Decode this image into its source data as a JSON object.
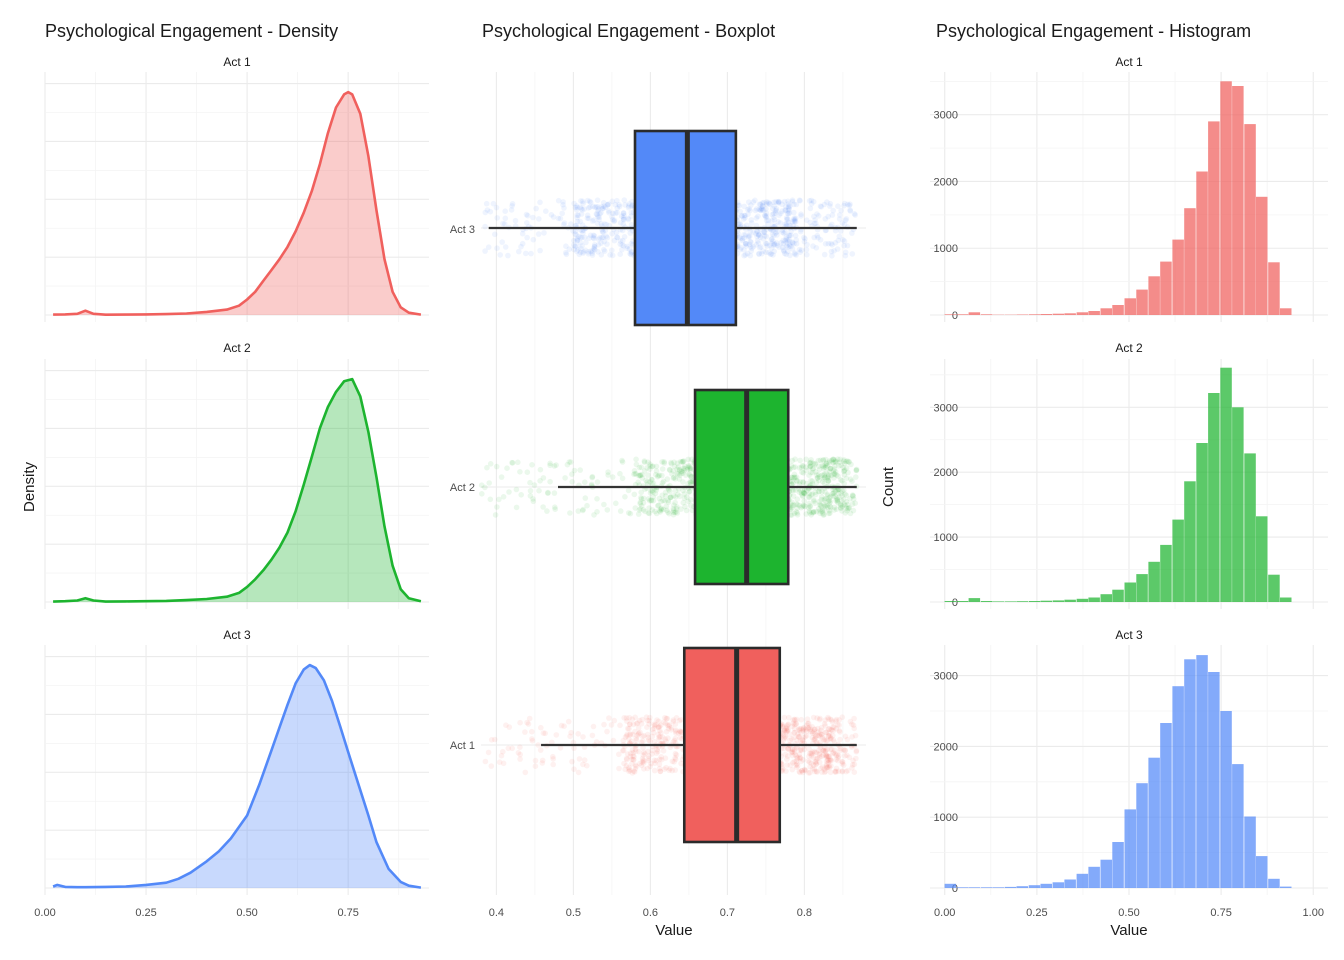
{
  "chart_data": [
    {
      "type": "density",
      "title": "Psychological Engagement - Density",
      "xlabel": "",
      "ylabel": "Density",
      "xlim": [
        0.0,
        0.95
      ],
      "xticks": [
        "0.00",
        "0.25",
        "0.50",
        "0.75"
      ],
      "show_y_ticks": false,
      "grid": true,
      "facets": [
        {
          "label": "Act 1",
          "color": "#F0605D",
          "x": [
            0.02,
            0.05,
            0.08,
            0.1,
            0.12,
            0.15,
            0.2,
            0.25,
            0.3,
            0.35,
            0.4,
            0.45,
            0.48,
            0.5,
            0.52,
            0.54,
            0.56,
            0.58,
            0.6,
            0.62,
            0.64,
            0.66,
            0.68,
            0.7,
            0.72,
            0.74,
            0.75,
            0.76,
            0.78,
            0.8,
            0.82,
            0.84,
            0.86,
            0.88,
            0.9,
            0.93
          ],
          "y": [
            0.005,
            0.008,
            0.015,
            0.055,
            0.015,
            0.004,
            0.005,
            0.008,
            0.012,
            0.02,
            0.04,
            0.07,
            0.12,
            0.2,
            0.3,
            0.44,
            0.58,
            0.72,
            0.88,
            1.08,
            1.32,
            1.6,
            1.95,
            2.35,
            2.68,
            2.85,
            2.88,
            2.85,
            2.6,
            2.05,
            1.35,
            0.72,
            0.3,
            0.1,
            0.03,
            0.005
          ]
        },
        {
          "label": "Act 2",
          "color": "#1DB42F",
          "x": [
            0.02,
            0.05,
            0.08,
            0.1,
            0.12,
            0.15,
            0.2,
            0.25,
            0.3,
            0.35,
            0.4,
            0.45,
            0.48,
            0.5,
            0.52,
            0.54,
            0.56,
            0.58,
            0.6,
            0.62,
            0.64,
            0.66,
            0.68,
            0.7,
            0.72,
            0.74,
            0.76,
            0.78,
            0.8,
            0.82,
            0.84,
            0.86,
            0.88,
            0.9,
            0.93
          ],
          "y": [
            0.005,
            0.01,
            0.02,
            0.05,
            0.02,
            0.005,
            0.008,
            0.01,
            0.015,
            0.025,
            0.04,
            0.07,
            0.12,
            0.2,
            0.3,
            0.42,
            0.56,
            0.72,
            0.92,
            1.2,
            1.55,
            1.92,
            2.3,
            2.58,
            2.78,
            2.92,
            2.95,
            2.72,
            2.25,
            1.65,
            1.0,
            0.48,
            0.17,
            0.05,
            0.01
          ]
        },
        {
          "label": "Act 3",
          "color": "#5389F8",
          "x": [
            0.02,
            0.03,
            0.05,
            0.08,
            0.1,
            0.15,
            0.2,
            0.25,
            0.3,
            0.33,
            0.36,
            0.4,
            0.43,
            0.46,
            0.5,
            0.53,
            0.56,
            0.58,
            0.6,
            0.62,
            0.64,
            0.655,
            0.67,
            0.69,
            0.71,
            0.73,
            0.75,
            0.77,
            0.8,
            0.82,
            0.85,
            0.88,
            0.9,
            0.93
          ],
          "y": [
            0.02,
            0.04,
            0.015,
            0.01,
            0.01,
            0.015,
            0.02,
            0.04,
            0.07,
            0.12,
            0.2,
            0.35,
            0.48,
            0.65,
            0.95,
            1.35,
            1.8,
            2.1,
            2.4,
            2.68,
            2.86,
            2.92,
            2.88,
            2.72,
            2.45,
            2.12,
            1.78,
            1.45,
            0.95,
            0.6,
            0.25,
            0.08,
            0.03,
            0.005
          ]
        }
      ]
    },
    {
      "type": "boxplot",
      "title": "Psychological Engagement - Boxplot",
      "xlabel": "Value",
      "ylabel": "",
      "xlim": [
        0.38,
        0.88
      ],
      "xticks": [
        0.4,
        0.5,
        0.6,
        0.7,
        0.8
      ],
      "categories": [
        "Act 3",
        "Act 2",
        "Act 1"
      ],
      "boxes": [
        {
          "label": "Act 3",
          "color": "#5389F8",
          "whisker_low": 0.39,
          "q1": 0.58,
          "median": 0.648,
          "q3": 0.711,
          "whisker_high": 0.868,
          "points_from": 0.385
        },
        {
          "label": "Act 2",
          "color": "#1DB42F",
          "whisker_low": 0.48,
          "q1": 0.658,
          "median": 0.725,
          "q3": 0.779,
          "whisker_high": 0.868,
          "points_from": 0.38
        },
        {
          "label": "Act 1",
          "color": "#F0605D",
          "whisker_low": 0.458,
          "q1": 0.644,
          "median": 0.712,
          "q3": 0.768,
          "whisker_high": 0.868,
          "points_from": 0.38
        }
      ]
    },
    {
      "type": "histogram",
      "title": "Psychological Engagement - Histogram",
      "xlabel": "Value",
      "ylabel": "Count",
      "xlim": [
        0.0,
        1.0
      ],
      "xticks": [
        "0.00",
        "0.25",
        "0.50",
        "0.75",
        "1.00"
      ],
      "bin_width": 0.0325,
      "grid": true,
      "facets": [
        {
          "label": "Act 1",
          "color": "#F0605D",
          "ymax": 3500,
          "yticks": [
            0,
            1000,
            2000,
            3000
          ],
          "bins": [
            0.016,
            0.049,
            0.081,
            0.114,
            0.146,
            0.179,
            0.211,
            0.244,
            0.276,
            0.309,
            0.341,
            0.374,
            0.406,
            0.439,
            0.471,
            0.504,
            0.536,
            0.569,
            0.601,
            0.634,
            0.666,
            0.699,
            0.731,
            0.764,
            0.796,
            0.829,
            0.861,
            0.894,
            0.926
          ],
          "counts": [
            10,
            10,
            40,
            10,
            5,
            5,
            8,
            10,
            15,
            20,
            25,
            40,
            60,
            100,
            150,
            250,
            380,
            580,
            800,
            1130,
            1600,
            2150,
            2900,
            3500,
            3430,
            2860,
            1770,
            790,
            100
          ]
        },
        {
          "label": "Act 2",
          "color": "#1DB42F",
          "ymax": 3600,
          "yticks": [
            0,
            1000,
            2000,
            3000
          ],
          "bins": [
            0.016,
            0.049,
            0.081,
            0.114,
            0.146,
            0.179,
            0.211,
            0.244,
            0.276,
            0.309,
            0.341,
            0.374,
            0.406,
            0.439,
            0.471,
            0.504,
            0.536,
            0.569,
            0.601,
            0.634,
            0.666,
            0.699,
            0.731,
            0.764,
            0.796,
            0.829,
            0.861,
            0.894,
            0.926
          ],
          "counts": [
            15,
            15,
            60,
            15,
            10,
            10,
            12,
            15,
            20,
            25,
            35,
            50,
            70,
            120,
            190,
            300,
            430,
            620,
            880,
            1270,
            1860,
            2450,
            3220,
            3610,
            3000,
            2290,
            1320,
            420,
            70
          ]
        },
        {
          "label": "Act 3",
          "color": "#5389F8",
          "ymax": 3300,
          "yticks": [
            0,
            1000,
            2000,
            3000
          ],
          "bins": [
            0.016,
            0.049,
            0.081,
            0.114,
            0.146,
            0.179,
            0.211,
            0.244,
            0.276,
            0.309,
            0.341,
            0.374,
            0.406,
            0.439,
            0.471,
            0.504,
            0.536,
            0.569,
            0.601,
            0.634,
            0.666,
            0.699,
            0.731,
            0.764,
            0.796,
            0.829,
            0.861,
            0.894,
            0.926
          ],
          "counts": [
            60,
            10,
            10,
            10,
            10,
            15,
            25,
            40,
            60,
            80,
            120,
            200,
            300,
            400,
            650,
            1110,
            1480,
            1840,
            2330,
            2850,
            3230,
            3290,
            3050,
            2500,
            1750,
            1010,
            450,
            130,
            20
          ]
        }
      ]
    }
  ]
}
